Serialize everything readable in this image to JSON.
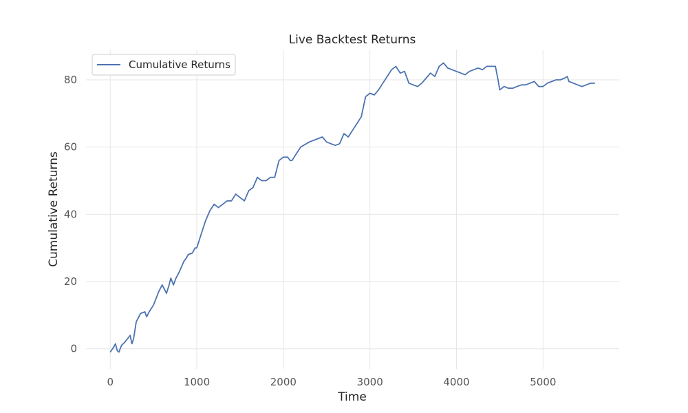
{
  "chart_data": {
    "type": "line",
    "title": "Live Backtest Returns",
    "xlabel": "Time",
    "ylabel": "Cumulative Returns",
    "xlim": [
      -280,
      5880
    ],
    "ylim": [
      -6,
      89
    ],
    "xticks": [
      0,
      1000,
      2000,
      3000,
      4000,
      5000
    ],
    "yticks": [
      0,
      20,
      40,
      60,
      80
    ],
    "grid": true,
    "legend_position": "top-left",
    "colors": {
      "line": "#4c72b0",
      "grid": "#e6e6e6",
      "background": "#ffffff"
    },
    "series": [
      {
        "name": "Cumulative Returns",
        "points": [
          [
            0,
            -1
          ],
          [
            40,
            0.5
          ],
          [
            60,
            1.5
          ],
          [
            80,
            -0.5
          ],
          [
            100,
            -1
          ],
          [
            130,
            1
          ],
          [
            170,
            2
          ],
          [
            200,
            3
          ],
          [
            230,
            4
          ],
          [
            250,
            1.5
          ],
          [
            270,
            3
          ],
          [
            300,
            8
          ],
          [
            350,
            10.5
          ],
          [
            400,
            11
          ],
          [
            420,
            9.5
          ],
          [
            450,
            11
          ],
          [
            500,
            13
          ],
          [
            530,
            15
          ],
          [
            560,
            17
          ],
          [
            600,
            19
          ],
          [
            620,
            18
          ],
          [
            650,
            16.5
          ],
          [
            680,
            19
          ],
          [
            700,
            21
          ],
          [
            730,
            19
          ],
          [
            760,
            21
          ],
          [
            800,
            23
          ],
          [
            850,
            26
          ],
          [
            880,
            27
          ],
          [
            900,
            28
          ],
          [
            950,
            28.5
          ],
          [
            980,
            30
          ],
          [
            1000,
            30
          ],
          [
            1050,
            34
          ],
          [
            1100,
            38
          ],
          [
            1150,
            41
          ],
          [
            1200,
            43
          ],
          [
            1250,
            42
          ],
          [
            1300,
            43
          ],
          [
            1350,
            44
          ],
          [
            1400,
            44
          ],
          [
            1450,
            46
          ],
          [
            1500,
            45
          ],
          [
            1550,
            44
          ],
          [
            1600,
            47
          ],
          [
            1650,
            48
          ],
          [
            1700,
            51
          ],
          [
            1750,
            50
          ],
          [
            1800,
            50
          ],
          [
            1850,
            51
          ],
          [
            1900,
            51
          ],
          [
            1920,
            53
          ],
          [
            1950,
            56
          ],
          [
            2000,
            57
          ],
          [
            2050,
            57
          ],
          [
            2080,
            56
          ],
          [
            2100,
            56
          ],
          [
            2150,
            58
          ],
          [
            2200,
            60
          ],
          [
            2300,
            61.5
          ],
          [
            2400,
            62.5
          ],
          [
            2450,
            63
          ],
          [
            2500,
            61.5
          ],
          [
            2550,
            61
          ],
          [
            2600,
            60.5
          ],
          [
            2650,
            61
          ],
          [
            2700,
            64
          ],
          [
            2750,
            63
          ],
          [
            2800,
            65
          ],
          [
            2850,
            67
          ],
          [
            2900,
            69
          ],
          [
            2950,
            75
          ],
          [
            3000,
            76
          ],
          [
            3050,
            75.5
          ],
          [
            3100,
            77
          ],
          [
            3150,
            79
          ],
          [
            3200,
            81
          ],
          [
            3250,
            83
          ],
          [
            3300,
            84
          ],
          [
            3350,
            82
          ],
          [
            3400,
            82.5
          ],
          [
            3450,
            79
          ],
          [
            3500,
            78.5
          ],
          [
            3550,
            78
          ],
          [
            3600,
            79
          ],
          [
            3650,
            80.5
          ],
          [
            3700,
            82
          ],
          [
            3750,
            81
          ],
          [
            3800,
            84
          ],
          [
            3850,
            85
          ],
          [
            3900,
            83.5
          ],
          [
            3950,
            83
          ],
          [
            4000,
            82.5
          ],
          [
            4050,
            82
          ],
          [
            4100,
            81.5
          ],
          [
            4150,
            82.5
          ],
          [
            4200,
            83
          ],
          [
            4250,
            83.5
          ],
          [
            4300,
            83
          ],
          [
            4350,
            84
          ],
          [
            4400,
            84
          ],
          [
            4450,
            84
          ],
          [
            4480,
            80
          ],
          [
            4500,
            77
          ],
          [
            4550,
            78
          ],
          [
            4600,
            77.5
          ],
          [
            4650,
            77.5
          ],
          [
            4700,
            78
          ],
          [
            4750,
            78.5
          ],
          [
            4800,
            78.5
          ],
          [
            4850,
            79
          ],
          [
            4900,
            79.5
          ],
          [
            4950,
            78
          ],
          [
            5000,
            78
          ],
          [
            5050,
            79
          ],
          [
            5100,
            79.5
          ],
          [
            5150,
            80
          ],
          [
            5200,
            80
          ],
          [
            5250,
            80.5
          ],
          [
            5280,
            81
          ],
          [
            5300,
            79.5
          ],
          [
            5350,
            79
          ],
          [
            5400,
            78.5
          ],
          [
            5450,
            78
          ],
          [
            5500,
            78.5
          ],
          [
            5550,
            79
          ],
          [
            5600,
            79
          ]
        ]
      }
    ]
  }
}
